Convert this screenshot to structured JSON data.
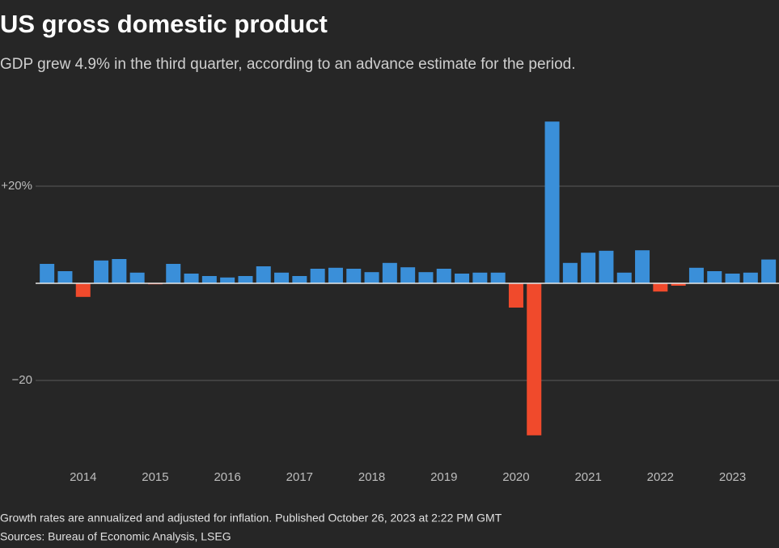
{
  "chart_data": {
    "type": "bar",
    "title": "US gross domestic product",
    "subtitle": "GDP grew 4.9% in the third quarter, according to an advance estimate for the period.",
    "notes": [
      "Growth rates are annualized and adjusted for inflation. Published October 26, 2023 at 2:22 PM GMT",
      "Sources: Bureau of Economic Analysis, LSEG"
    ],
    "categories": [
      null,
      null,
      "2014",
      null,
      null,
      null,
      "2015",
      null,
      null,
      null,
      "2016",
      null,
      null,
      null,
      "2017",
      null,
      null,
      null,
      "2018",
      null,
      null,
      null,
      "2019",
      null,
      null,
      null,
      "2020",
      null,
      null,
      null,
      "2021",
      null,
      null,
      null,
      "2022",
      null,
      null,
      null,
      "2023",
      null,
      null
    ],
    "values": [
      4.0,
      2.5,
      -2.8,
      4.7,
      5.0,
      2.2,
      -0.2,
      4.0,
      2.0,
      1.5,
      1.2,
      1.5,
      3.5,
      2.2,
      1.5,
      3.0,
      3.2,
      3.0,
      2.3,
      4.2,
      3.3,
      2.3,
      3.0,
      2.0,
      2.2,
      2.2,
      -5.0,
      -31.3,
      33.3,
      4.2,
      6.3,
      6.7,
      2.2,
      6.8,
      -1.7,
      -0.5,
      3.2,
      2.5,
      2.0,
      2.2,
      4.9
    ],
    "color": "#3a8fd9",
    "negative_color": "#f04a2c",
    "ylim": [
      -35,
      35
    ],
    "yticks": [
      {
        "value": 20,
        "label": "+20%"
      },
      {
        "value": -20,
        "label": "−20"
      }
    ],
    "grid": true
  }
}
